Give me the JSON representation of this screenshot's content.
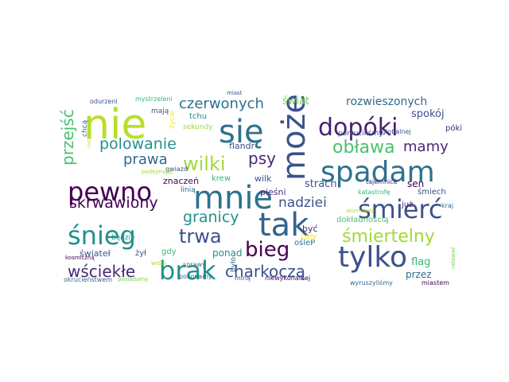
{
  "words": [
    {
      "text": "nie",
      "color": "#b8de29"
    },
    {
      "text": "się",
      "color": "#2c728e"
    },
    {
      "text": "może",
      "color": "#3b528b"
    },
    {
      "text": "dopóki",
      "color": "#481f70"
    },
    {
      "text": "spadam",
      "color": "#2c728e"
    },
    {
      "text": "mnie",
      "color": "#2c728e"
    },
    {
      "text": "tak",
      "color": "#33638d"
    },
    {
      "text": "pewno",
      "color": "#440154"
    },
    {
      "text": "śmierć",
      "color": "#3b528b"
    },
    {
      "text": "śnieg",
      "color": "#21918c"
    },
    {
      "text": "tylko",
      "color": "#3b528b"
    },
    {
      "text": "brak",
      "color": "#21918c"
    },
    {
      "text": "bieg",
      "color": "#440154"
    },
    {
      "text": "trwa",
      "color": "#3b528b"
    },
    {
      "text": "śmiertelny",
      "color": "#a0da39"
    },
    {
      "text": "wściekłe",
      "color": "#482878"
    },
    {
      "text": "charkoczą",
      "color": "#3b528b"
    },
    {
      "text": "skrwawiony",
      "color": "#440154"
    },
    {
      "text": "granicy",
      "color": "#21918c"
    },
    {
      "text": "nadziei",
      "color": "#3b528b"
    },
    {
      "text": "obława",
      "color": "#4ac16d"
    },
    {
      "text": "mamy",
      "color": "#482878"
    },
    {
      "text": "polowanie",
      "color": "#21918c"
    },
    {
      "text": "wilki",
      "color": "#a0da39"
    },
    {
      "text": "prawa",
      "color": "#31688e"
    },
    {
      "text": "psy",
      "color": "#482878"
    },
    {
      "text": "czerwonych",
      "color": "#2c728e"
    },
    {
      "text": "przejść",
      "color": "#4ac16d"
    },
    {
      "text": "rozwieszonych",
      "color": "#31688e"
    },
    {
      "text": "świat",
      "color": "#7ad151"
    },
    {
      "text": "spokój",
      "color": "#3b528b"
    },
    {
      "text": "strach",
      "color": "#3b528b"
    },
    {
      "text": "sen",
      "color": "#440154"
    },
    {
      "text": "flag",
      "color": "#35b779"
    },
    {
      "text": "śmiech",
      "color": "#3b528b"
    },
    {
      "text": "przez",
      "color": "#31688e"
    },
    {
      "text": "już",
      "color": "#482878"
    },
    {
      "text": "ponad",
      "color": "#21918c"
    },
    {
      "text": "świateł",
      "color": "#3b528b"
    },
    {
      "text": "znaczeń",
      "color": "#440154"
    },
    {
      "text": "pieśni",
      "color": "#482878"
    },
    {
      "text": "krew",
      "color": "#35b779"
    },
    {
      "text": "wilk",
      "color": "#3b528b"
    },
    {
      "text": "ośleP",
      "color": "#2c728e"
    },
    {
      "text": "dokładnością",
      "color": "#4ac16d"
    },
    {
      "text": "wyruszyliśmy",
      "color": "#31688e"
    },
    {
      "text": "miastem",
      "color": "#440154"
    },
    {
      "text": "porzuciliśmy",
      "color": "#3b528b"
    },
    {
      "text": "globalnej",
      "color": "#3b528b"
    },
    {
      "text": "póki",
      "color": "#482878"
    },
    {
      "text": "flandr",
      "color": "#3b528b"
    },
    {
      "text": "tchu",
      "color": "#21918c"
    },
    {
      "text": "sekundy",
      "color": "#a0da39"
    },
    {
      "text": "życie",
      "color": "#fde725"
    },
    {
      "text": "chcą",
      "color": "#2c728e"
    },
    {
      "text": "gwiazd",
      "color": "#3b528b"
    },
    {
      "text": "odurzeni",
      "color": "#3b528b"
    },
    {
      "text": "mystrzeleni",
      "color": "#35b779"
    },
    {
      "text": "będzie",
      "color": "#21918c"
    },
    {
      "text": "linią",
      "color": "#31688e"
    },
    {
      "text": "gdy",
      "color": "#35b779"
    },
    {
      "text": "żył",
      "color": "#3b528b"
    },
    {
      "text": "było",
      "color": "#31688e"
    },
    {
      "text": "być",
      "color": "#482878"
    },
    {
      "text": "mają",
      "color": "#3b528b"
    },
    {
      "text": "katastrofę",
      "color": "#35b779"
    },
    {
      "text": "kraj",
      "color": "#31688e"
    },
    {
      "text": "niewykonalnej",
      "color": "#440154"
    },
    {
      "text": "miną",
      "color": "#3b528b"
    },
    {
      "text": "pokonamy",
      "color": "#31688e"
    },
    {
      "text": "sprawy",
      "color": "#2c728e"
    },
    {
      "text": "okrucieństwem",
      "color": "#31688e"
    },
    {
      "text": "posiadamy",
      "color": "#7ad151"
    },
    {
      "text": "kosmiczną",
      "color": "#440154"
    },
    {
      "text": "wróci",
      "color": "#a0da39"
    },
    {
      "text": "podejmując",
      "color": "#a0da39"
    },
    {
      "text": "atomowej",
      "color": "#b8de29"
    },
    {
      "text": "cały",
      "color": "#fde725"
    },
    {
      "text": "tajemnice",
      "color": "#482878"
    },
    {
      "text": "miast",
      "color": "#3b528b"
    },
    {
      "text": "rodziny",
      "color": "#b8de29"
    },
    {
      "text": "ratować",
      "color": "#7ad151"
    }
  ]
}
